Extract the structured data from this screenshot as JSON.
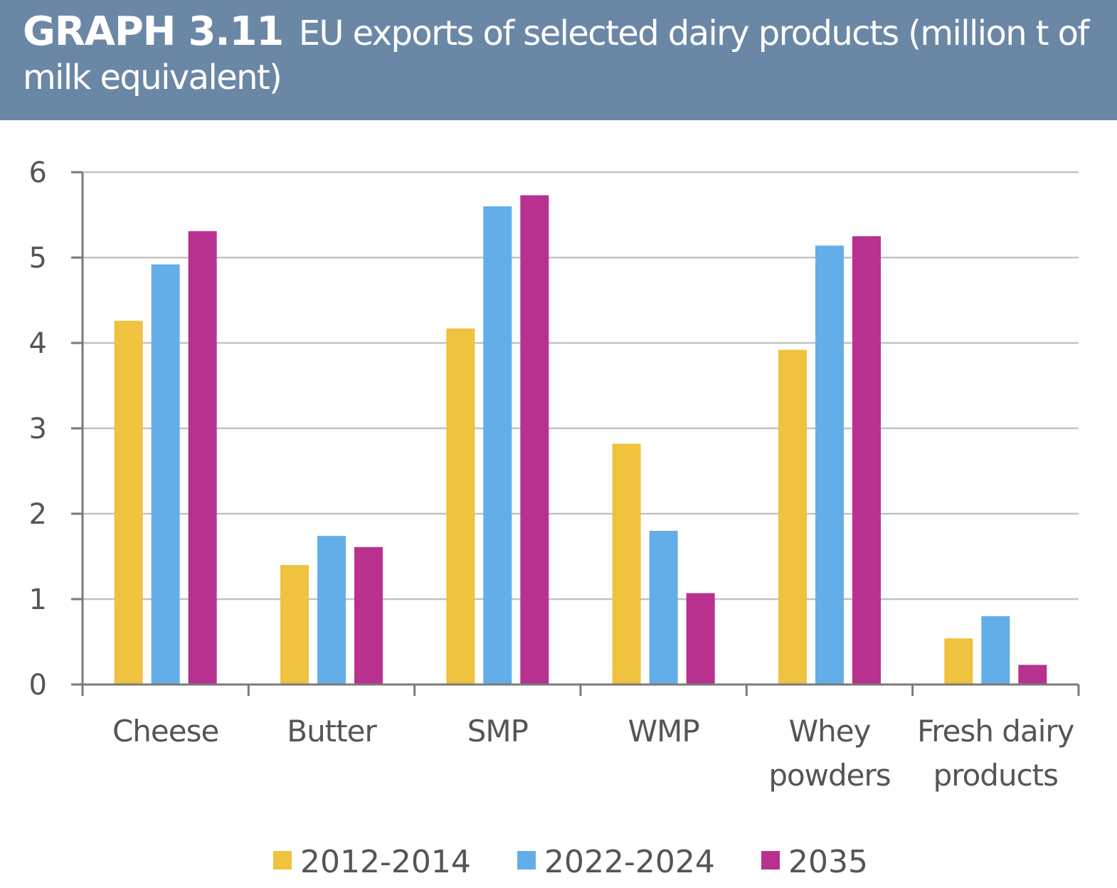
{
  "header": {
    "label": "GRAPH 3.11",
    "title": "EU exports of selected dairy products (million t of milk equivalent)"
  },
  "chart_data": {
    "type": "bar",
    "categories": [
      [
        "Cheese"
      ],
      [
        "Butter"
      ],
      [
        "SMP"
      ],
      [
        "WMP"
      ],
      [
        "Whey",
        "powders"
      ],
      [
        "Fresh dairy",
        "products"
      ]
    ],
    "series": [
      {
        "name": "2012-2014",
        "color": "#efc23f",
        "values": [
          4.26,
          1.4,
          4.17,
          2.82,
          3.92,
          0.54
        ]
      },
      {
        "name": "2022-2024",
        "color": "#63aee8",
        "values": [
          4.92,
          1.74,
          5.6,
          1.8,
          5.14,
          0.8
        ]
      },
      {
        "name": "2035",
        "color": "#b8318f",
        "values": [
          5.31,
          1.61,
          5.73,
          1.07,
          5.25,
          0.23
        ]
      }
    ],
    "ylim": [
      0,
      6
    ],
    "yticks": [
      "0",
      "1",
      "2",
      "3",
      "4",
      "5",
      "6"
    ],
    "grid": true,
    "legend": "bottom"
  }
}
